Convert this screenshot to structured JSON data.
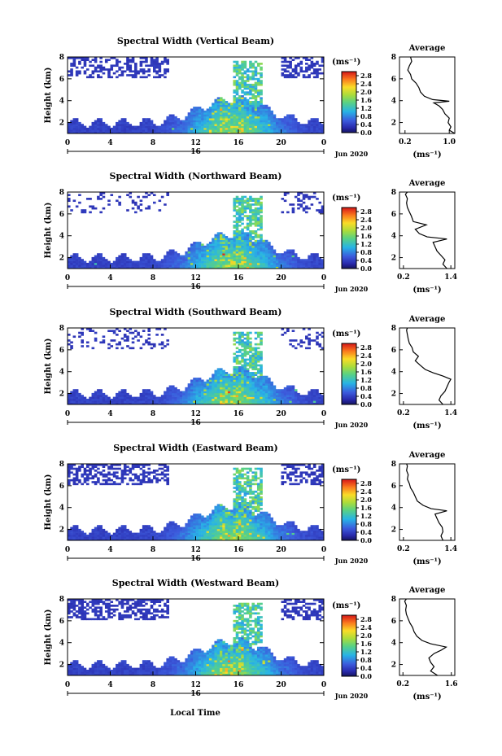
{
  "figure": {
    "xlabel": "Local Time",
    "date_label": "Jun 2020",
    "day_label": "16",
    "colorbar_unit": "(ms⁻¹)",
    "average_title": "Average",
    "average_unit": "(ms⁻¹)"
  },
  "chart_data": [
    {
      "type": "heatmap",
      "title": "Spectral Width (Vertical Beam)",
      "xlabel": "Local Time",
      "ylabel": "Height (km)",
      "x_ticks": [
        "0",
        "4",
        "8",
        "12",
        "16",
        "20",
        "0"
      ],
      "y_ticks": [
        "2",
        "4",
        "6",
        "8"
      ],
      "xlim": [
        0,
        24
      ],
      "ylim": [
        1,
        8
      ],
      "colorbar": {
        "label": "(ms⁻¹)",
        "ticks": [
          "2.8",
          "2.4",
          "2.0",
          "1.6",
          "1.2",
          "0.8",
          "0.4",
          "0.0"
        ],
        "range": [
          0.0,
          3.0
        ]
      },
      "average": {
        "title": "Average",
        "xlabel": "(ms⁻¹)",
        "x_ticks": [
          "0.2",
          "1.0"
        ],
        "xlim": [
          0.1,
          1.1
        ],
        "y_ticks": [
          "2",
          "4",
          "6",
          "8"
        ],
        "ylim": [
          1,
          8
        ],
        "profile": [
          [
            1.0,
            1.1
          ],
          [
            1.3,
            1.0
          ],
          [
            1.6,
            1.03
          ],
          [
            2.0,
            0.98
          ],
          [
            2.4,
            1.0
          ],
          [
            2.8,
            0.92
          ],
          [
            3.2,
            0.88
          ],
          [
            3.5,
            0.82
          ],
          [
            3.8,
            0.72
          ],
          [
            3.95,
            1.0
          ],
          [
            4.1,
            0.7
          ],
          [
            4.4,
            0.55
          ],
          [
            4.8,
            0.48
          ],
          [
            5.2,
            0.45
          ],
          [
            5.6,
            0.4
          ],
          [
            6.0,
            0.32
          ],
          [
            6.4,
            0.3
          ],
          [
            6.8,
            0.25
          ],
          [
            7.2,
            0.28
          ],
          [
            7.6,
            0.32
          ],
          [
            8.0,
            0.3
          ]
        ]
      }
    },
    {
      "type": "heatmap",
      "title": "Spectral Width (Northward Beam)",
      "xlabel": "Local Time",
      "ylabel": "Height (km)",
      "x_ticks": [
        "0",
        "4",
        "8",
        "12",
        "16",
        "20",
        "0"
      ],
      "y_ticks": [
        "2",
        "4",
        "6",
        "8"
      ],
      "xlim": [
        0,
        24
      ],
      "ylim": [
        1,
        8
      ],
      "colorbar": {
        "label": "(ms⁻¹)",
        "ticks": [
          "2.8",
          "2.4",
          "2.0",
          "1.6",
          "1.2",
          "0.8",
          "0.4",
          "0.0"
        ],
        "range": [
          0.0,
          3.0
        ]
      },
      "average": {
        "title": "Average",
        "xlabel": "(ms⁻¹)",
        "x_ticks": [
          "0.2",
          "1.4"
        ],
        "xlim": [
          0.1,
          1.5
        ],
        "y_ticks": [
          "2",
          "4",
          "6",
          "8"
        ],
        "ylim": [
          1,
          8
        ],
        "profile": [
          [
            1.0,
            1.3
          ],
          [
            1.4,
            1.2
          ],
          [
            1.8,
            1.25
          ],
          [
            2.2,
            1.15
          ],
          [
            2.6,
            1.05
          ],
          [
            3.0,
            1.0
          ],
          [
            3.4,
            0.95
          ],
          [
            3.7,
            1.3
          ],
          [
            3.9,
            0.8
          ],
          [
            4.2,
            0.6
          ],
          [
            4.6,
            0.5
          ],
          [
            5.0,
            0.78
          ],
          [
            5.3,
            0.45
          ],
          [
            5.8,
            0.4
          ],
          [
            6.2,
            0.35
          ],
          [
            6.6,
            0.3
          ],
          [
            7.0,
            0.28
          ],
          [
            7.4,
            0.3
          ],
          [
            7.8,
            0.25
          ],
          [
            8.0,
            0.3
          ]
        ]
      }
    },
    {
      "type": "heatmap",
      "title": "Spectral Width (Southward Beam)",
      "xlabel": "Local Time",
      "ylabel": "Height (km)",
      "x_ticks": [
        "0",
        "4",
        "8",
        "12",
        "16",
        "20",
        "0"
      ],
      "y_ticks": [
        "2",
        "4",
        "6",
        "8"
      ],
      "xlim": [
        0,
        24
      ],
      "ylim": [
        1,
        8
      ],
      "colorbar": {
        "label": "(ms⁻¹)",
        "ticks": [
          "2.8",
          "2.4",
          "2.0",
          "1.6",
          "1.2",
          "0.8",
          "0.4",
          "0.0"
        ],
        "range": [
          0.0,
          3.0
        ]
      },
      "average": {
        "title": "Average",
        "xlabel": "(ms⁻¹)",
        "x_ticks": [
          "0.2",
          "1.4"
        ],
        "xlim": [
          0.1,
          1.5
        ],
        "y_ticks": [
          "2",
          "4",
          "6",
          "8"
        ],
        "ylim": [
          1,
          8
        ],
        "profile": [
          [
            1.0,
            1.2
          ],
          [
            1.4,
            1.1
          ],
          [
            1.8,
            1.15
          ],
          [
            2.2,
            1.25
          ],
          [
            2.6,
            1.3
          ],
          [
            3.0,
            1.35
          ],
          [
            3.3,
            1.4
          ],
          [
            3.6,
            1.2
          ],
          [
            3.9,
            0.95
          ],
          [
            4.2,
            0.75
          ],
          [
            4.6,
            0.62
          ],
          [
            5.0,
            0.5
          ],
          [
            5.4,
            0.58
          ],
          [
            5.8,
            0.45
          ],
          [
            6.2,
            0.42
          ],
          [
            6.6,
            0.35
          ],
          [
            7.0,
            0.32
          ],
          [
            7.4,
            0.3
          ],
          [
            7.8,
            0.28
          ],
          [
            8.0,
            0.3
          ]
        ]
      }
    },
    {
      "type": "heatmap",
      "title": "Spectral Width (Eastward Beam)",
      "xlabel": "Local Time",
      "ylabel": "Height (km)",
      "x_ticks": [
        "0",
        "4",
        "8",
        "12",
        "16",
        "20",
        "0"
      ],
      "y_ticks": [
        "2",
        "4",
        "6",
        "8"
      ],
      "xlim": [
        0,
        24
      ],
      "ylim": [
        1,
        8
      ],
      "colorbar": {
        "label": "(ms⁻¹)",
        "ticks": [
          "2.8",
          "2.4",
          "2.0",
          "1.6",
          "1.2",
          "0.8",
          "0.4",
          "0.0"
        ],
        "range": [
          0.0,
          3.0
        ]
      },
      "average": {
        "title": "Average",
        "xlabel": "(ms⁻¹)",
        "x_ticks": [
          "0.2",
          "1.4"
        ],
        "xlim": [
          0.1,
          1.5
        ],
        "y_ticks": [
          "2",
          "4",
          "6",
          "8"
        ],
        "ylim": [
          1,
          8
        ],
        "profile": [
          [
            1.0,
            1.2
          ],
          [
            1.4,
            1.15
          ],
          [
            1.8,
            1.2
          ],
          [
            2.2,
            1.18
          ],
          [
            2.6,
            1.1
          ],
          [
            3.0,
            1.05
          ],
          [
            3.4,
            1.0
          ],
          [
            3.7,
            1.3
          ],
          [
            3.9,
            0.9
          ],
          [
            4.2,
            0.7
          ],
          [
            4.6,
            0.55
          ],
          [
            5.0,
            0.5
          ],
          [
            5.4,
            0.45
          ],
          [
            5.8,
            0.38
          ],
          [
            6.2,
            0.35
          ],
          [
            6.6,
            0.3
          ],
          [
            7.0,
            0.32
          ],
          [
            7.4,
            0.28
          ],
          [
            7.8,
            0.3
          ],
          [
            8.0,
            0.28
          ]
        ]
      }
    },
    {
      "type": "heatmap",
      "title": "Spectral Width (Westward Beam)",
      "xlabel": "Local Time",
      "ylabel": "Height (km)",
      "x_ticks": [
        "0",
        "4",
        "8",
        "12",
        "16",
        "20",
        "0"
      ],
      "y_ticks": [
        "2",
        "4",
        "6",
        "8"
      ],
      "xlim": [
        0,
        24
      ],
      "ylim": [
        1,
        8
      ],
      "colorbar": {
        "label": "(ms⁻¹)",
        "ticks": [
          "2.8",
          "2.4",
          "2.0",
          "1.6",
          "1.2",
          "0.8",
          "0.4",
          "0.0"
        ],
        "range": [
          0.0,
          3.0
        ]
      },
      "average": {
        "title": "Average",
        "xlabel": "(ms⁻¹)",
        "x_ticks": [
          "0.2",
          "1.6"
        ],
        "xlim": [
          0.1,
          1.7
        ],
        "y_ticks": [
          "2",
          "4",
          "6",
          "8"
        ],
        "ylim": [
          1,
          8
        ],
        "profile": [
          [
            1.0,
            1.2
          ],
          [
            1.4,
            1.0
          ],
          [
            1.8,
            1.1
          ],
          [
            2.2,
            1.0
          ],
          [
            2.6,
            0.95
          ],
          [
            3.0,
            1.1
          ],
          [
            3.3,
            1.3
          ],
          [
            3.6,
            1.45
          ],
          [
            3.9,
            1.0
          ],
          [
            4.2,
            0.75
          ],
          [
            4.6,
            0.6
          ],
          [
            5.0,
            0.52
          ],
          [
            5.4,
            0.48
          ],
          [
            5.8,
            0.4
          ],
          [
            6.2,
            0.35
          ],
          [
            6.6,
            0.3
          ],
          [
            7.0,
            0.28
          ],
          [
            7.4,
            0.3
          ],
          [
            7.8,
            0.25
          ],
          [
            8.0,
            0.3
          ]
        ]
      }
    }
  ]
}
